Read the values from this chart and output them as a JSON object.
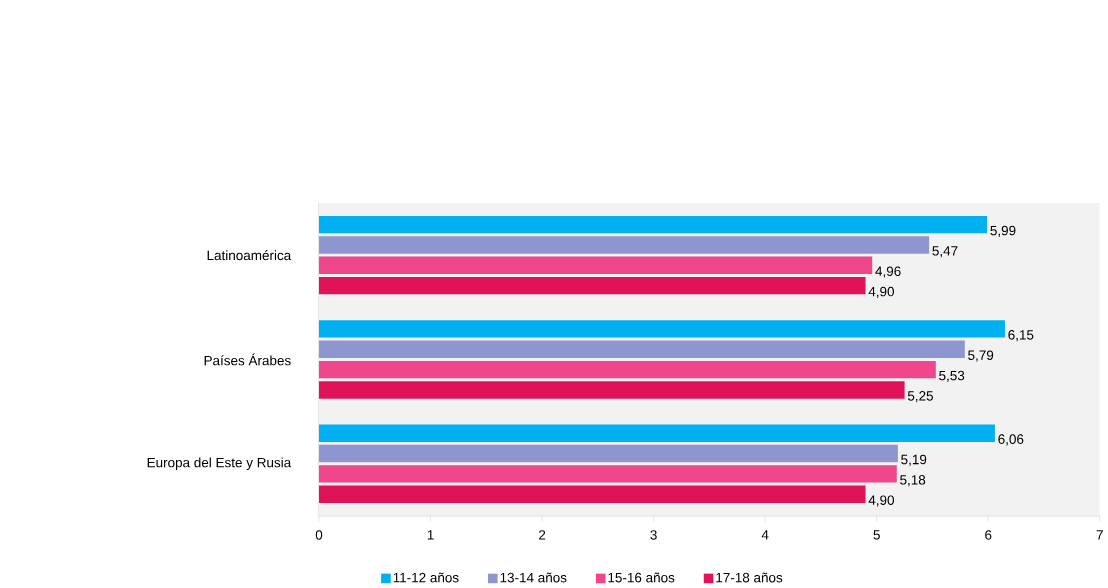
{
  "chart_data": {
    "type": "bar",
    "orientation": "horizontal",
    "categories": [
      "Latinoamérica",
      "Países Árabes",
      "Europa del Este y Rusia"
    ],
    "series": [
      {
        "name": "11-12 años",
        "color": "#00b0f0",
        "values": [
          5.99,
          6.15,
          6.06
        ],
        "value_labels": [
          "5,99",
          "6,15",
          "6,06"
        ]
      },
      {
        "name": "13-14 años",
        "color": "#8e96d0",
        "values": [
          5.47,
          5.79,
          5.19
        ],
        "value_labels": [
          "5,47",
          "5,79",
          "5,19"
        ]
      },
      {
        "name": "15-16 años",
        "color": "#f0468c",
        "values": [
          4.96,
          5.53,
          5.18
        ],
        "value_labels": [
          "4,96",
          "5,53",
          "5,18"
        ]
      },
      {
        "name": "17-18 años",
        "color": "#e0125a",
        "values": [
          4.9,
          5.25,
          4.9
        ],
        "value_labels": [
          "4,90",
          "5,25",
          "4,90"
        ]
      }
    ],
    "xlim": [
      0,
      7
    ],
    "xticks": [
      0,
      1,
      2,
      3,
      4,
      5,
      6,
      7
    ],
    "legend": "bottom"
  }
}
